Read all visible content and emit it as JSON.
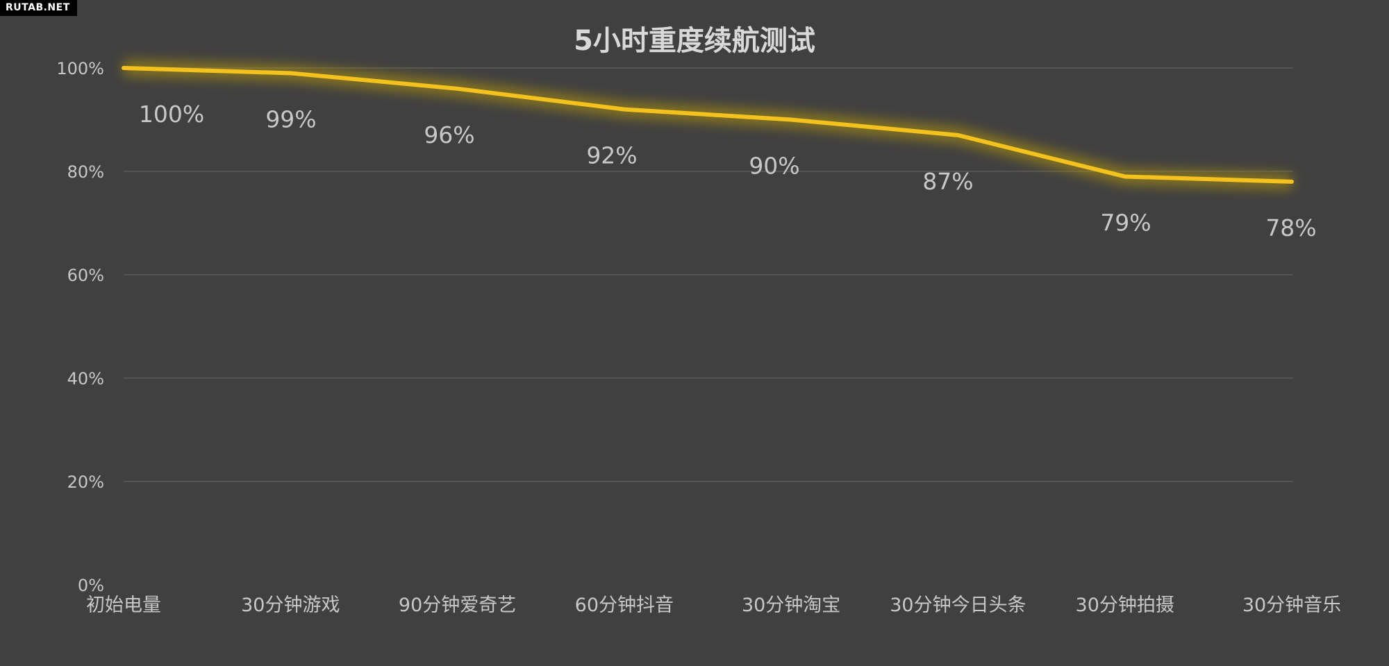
{
  "watermark": "RUTAB.NET",
  "colors": {
    "background": "#404040",
    "line": "#F4C21F",
    "glow": "#C9A400",
    "grid": "#5A5A5A",
    "text": "#C8C8C8",
    "title": "#D9D9D9"
  },
  "chart_data": {
    "type": "line",
    "title": "5小时重度续航测试",
    "xlabel": "",
    "ylabel": "",
    "categories": [
      "初始电量",
      "30分钟游戏",
      "90分钟爱奇艺",
      "60分钟抖音",
      "30分钟淘宝",
      "30分钟今日头条",
      "30分钟拍摄",
      "30分钟音乐"
    ],
    "series": [
      {
        "values": [
          100,
          99,
          96,
          92,
          90,
          87,
          79,
          78
        ],
        "data_labels": [
          "100%",
          "99%",
          "96%",
          "92%",
          "90%",
          "87%",
          "79%",
          "78%"
        ]
      }
    ],
    "ylim": [
      0,
      100
    ],
    "yticks": [
      0,
      20,
      40,
      60,
      80,
      100
    ],
    "ytick_labels": [
      "0%",
      "20%",
      "40%",
      "60%",
      "80%",
      "100%"
    ],
    "grid": true,
    "legend": "none"
  }
}
